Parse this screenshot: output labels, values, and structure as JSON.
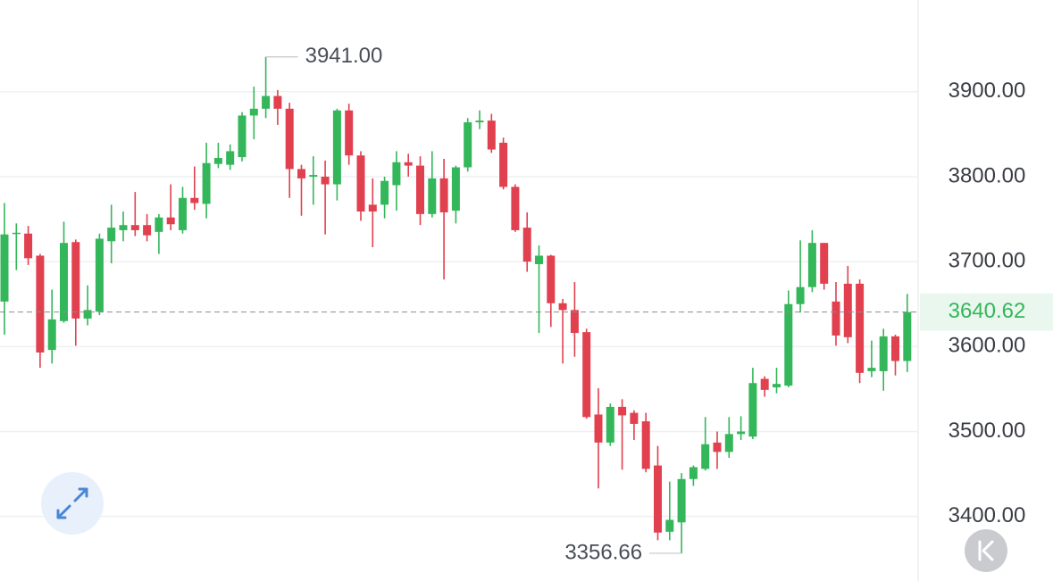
{
  "chart_data": {
    "type": "candlestick",
    "up_color": "#34b65a",
    "down_color": "#e1404f",
    "grid": true,
    "ylim": [
      3324,
      4008
    ],
    "yticks": [
      {
        "value": 3400,
        "label": "3400.00"
      },
      {
        "value": 3500,
        "label": "3500.00"
      },
      {
        "value": 3600,
        "label": "3600.00"
      },
      {
        "value": 3700,
        "label": "3700.00"
      },
      {
        "value": 3800,
        "label": "3800.00"
      },
      {
        "value": 3900,
        "label": "3900.00"
      }
    ],
    "max_label": {
      "value": 3941,
      "label": "3941.00"
    },
    "min_label": {
      "value": 3356.66,
      "label": "3356.66"
    },
    "last_price": {
      "value": 3640.62,
      "label": "3640.62"
    },
    "open": [
      3653,
      3733,
      3733,
      3707,
      3596,
      3630,
      3723,
      3633,
      3641,
      3724,
      3737,
      3743,
      3743,
      3735,
      3752,
      3737,
      3775,
      3768,
      3815,
      3814,
      3823,
      3872,
      3880,
      3895,
      3880,
      3809,
      3800,
      3800,
      3791,
      3878,
      3825,
      3767,
      3767,
      3790,
      3817,
      3813,
      3756,
      3798,
      3760,
      3811,
      3864,
      3866,
      3840,
      3788,
      3740,
      3697,
      3707,
      3651,
      3643,
      3617,
      3520,
      3487,
      3529,
      3522,
      3512,
      3460,
      3382,
      3393,
      3444,
      3456,
      3487,
      3476,
      3497,
      3494,
      3562,
      3552,
      3554,
      3650,
      3670,
      3722,
      3653,
      3674,
      3674,
      3571,
      3571,
      3612,
      3583
    ],
    "high": [
      3769,
      3745,
      3742,
      3709,
      3667,
      3747,
      3726,
      3672,
      3733,
      3767,
      3759,
      3782,
      3756,
      3756,
      3791,
      3788,
      3812,
      3840,
      3840,
      3838,
      3876,
      3906,
      3941,
      3902,
      3887,
      3814,
      3824,
      3819,
      3880,
      3886,
      3830,
      3798,
      3800,
      3830,
      3827,
      3824,
      3830,
      3821,
      3813,
      3869,
      3878,
      3874,
      3846,
      3791,
      3758,
      3719,
      3708,
      3656,
      3676,
      3621,
      3551,
      3533,
      3538,
      3525,
      3522,
      3483,
      3441,
      3451,
      3460,
      3517,
      3500,
      3517,
      3518,
      3575,
      3565,
      3575,
      3666,
      3725,
      3737,
      3722,
      3676,
      3695,
      3679,
      3607,
      3621,
      3614,
      3662
    ],
    "low": [
      3614,
      3690,
      3696,
      3575,
      3580,
      3628,
      3601,
      3625,
      3637,
      3698,
      3724,
      3730,
      3724,
      3709,
      3737,
      3733,
      3761,
      3751,
      3810,
      3808,
      3818,
      3844,
      3869,
      3861,
      3775,
      3754,
      3767,
      3732,
      3772,
      3814,
      3748,
      3717,
      3751,
      3760,
      3800,
      3743,
      3752,
      3679,
      3745,
      3806,
      3856,
      3828,
      3785,
      3735,
      3688,
      3616,
      3623,
      3580,
      3588,
      3515,
      3433,
      3483,
      3455,
      3490,
      3452,
      3372,
      3372,
      3356.66,
      3436,
      3454,
      3456,
      3469,
      3490,
      3491,
      3541,
      3545,
      3552,
      3640,
      3664,
      3667,
      3601,
      3604,
      3557,
      3564,
      3548,
      3566,
      3570
    ],
    "close": [
      3732,
      3734,
      3704,
      3593,
      3632,
      3722,
      3633,
      3643,
      3727,
      3740,
      3743,
      3737,
      3731,
      3752,
      3744,
      3775,
      3769,
      3816,
      3822,
      3830,
      3872,
      3880,
      3895,
      3880,
      3809,
      3798,
      3802,
      3791,
      3878,
      3825,
      3759,
      3759,
      3795,
      3817,
      3813,
      3756,
      3798,
      3758,
      3811,
      3864,
      3866,
      3832,
      3788,
      3737,
      3700,
      3707,
      3651,
      3643,
      3616,
      3517,
      3487,
      3529,
      3519,
      3509,
      3456,
      3381,
      3396,
      3444,
      3458,
      3485,
      3476,
      3497,
      3500,
      3557,
      3549,
      3556,
      3650,
      3670,
      3722,
      3674,
      3613,
      3611,
      3569,
      3575,
      3612,
      3583,
      3640.62
    ]
  }
}
